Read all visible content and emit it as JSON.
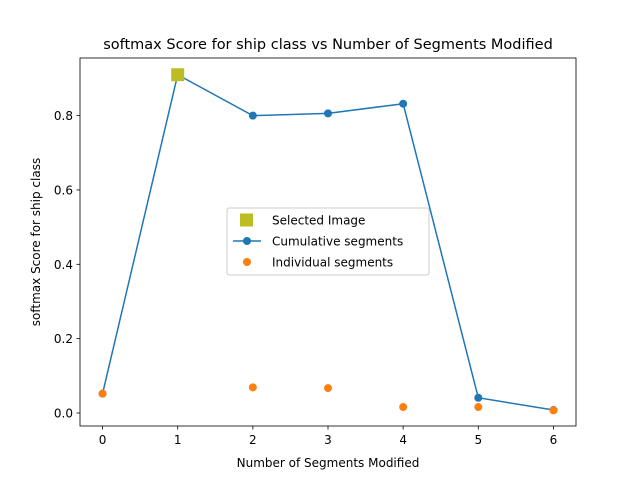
{
  "chart_data": {
    "type": "line",
    "title": "softmax Score for ship class vs Number of Segments Modified",
    "xlabel": "Number of Segments Modified",
    "ylabel": "softmax Score for ship class",
    "xlim": [
      -0.3,
      6.3
    ],
    "ylim": [
      -0.035,
      0.955
    ],
    "xticks": [
      0,
      1,
      2,
      3,
      4,
      5,
      6
    ],
    "yticks": [
      0.0,
      0.2,
      0.4,
      0.6,
      0.8
    ],
    "ytick_labels": [
      "0.0",
      "0.2",
      "0.4",
      "0.6",
      "0.8"
    ],
    "grid": false,
    "legend_position": "center-right",
    "series": [
      {
        "name": "Selected Image",
        "kind": "marker",
        "marker": "square",
        "color": "#bcbd22",
        "x": [
          1
        ],
        "y": [
          0.91
        ]
      },
      {
        "name": "Cumulative segments",
        "kind": "line+marker",
        "marker": "circle",
        "color": "#1f77b4",
        "x": [
          0,
          1,
          2,
          3,
          4,
          5,
          6
        ],
        "y": [
          0.052,
          0.91,
          0.8,
          0.806,
          0.832,
          0.041,
          0.008
        ]
      },
      {
        "name": "Individual segments",
        "kind": "marker",
        "marker": "circle",
        "color": "#ff7f0e",
        "x": [
          0,
          2,
          3,
          4,
          5,
          6
        ],
        "y": [
          0.052,
          0.069,
          0.067,
          0.016,
          0.016,
          0.007
        ]
      }
    ]
  }
}
